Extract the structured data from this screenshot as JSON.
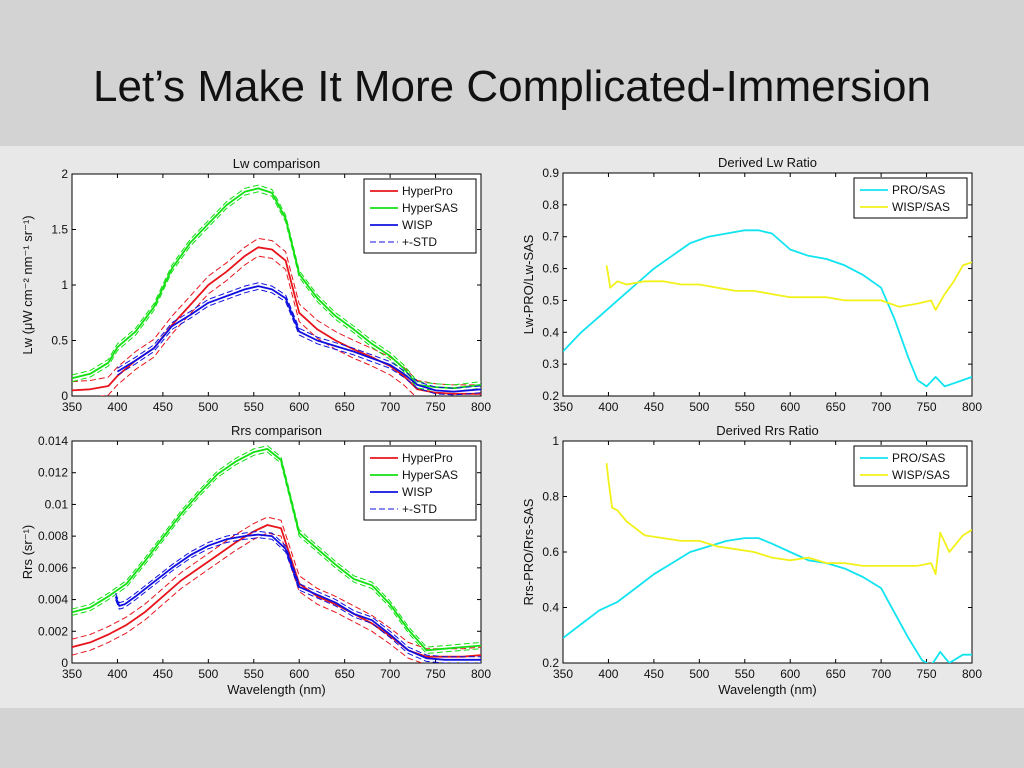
{
  "slide": {
    "title": "Let’s Make It More Complicated-Immersion"
  },
  "colors": {
    "hyperpro": "#e8141b",
    "hypersas": "#12e012",
    "wisp": "#1010e0",
    "pro_sas": "#10e4f0",
    "wisp_sas": "#f2f21a"
  },
  "chart_data": [
    {
      "id": "lw",
      "type": "line",
      "title": "Lw comparison",
      "xlabel": "",
      "ylabel": "Lw (μW cm⁻² nm⁻¹ sr⁻¹)",
      "xlim": [
        350,
        800
      ],
      "ylim": [
        0,
        2
      ],
      "xticks": [
        350,
        400,
        450,
        500,
        550,
        600,
        650,
        700,
        750,
        800
      ],
      "yticks": [
        0,
        0.5,
        1,
        1.5,
        2
      ],
      "ytick_labels": [
        "0",
        "0.5",
        "1",
        "1.5",
        "2"
      ],
      "legend_position": "top-right",
      "legend": [
        {
          "label": "HyperPro",
          "color_key": "hyperpro",
          "dashed": false
        },
        {
          "label": "HyperSAS",
          "color_key": "hypersas",
          "dashed": false
        },
        {
          "label": "WISP",
          "color_key": "wisp",
          "dashed": false
        },
        {
          "label": "+-STD",
          "color_key": "wisp",
          "dashed": true
        }
      ],
      "series": [
        {
          "name": "HyperPro",
          "color_key": "hyperpro",
          "std": 0.08,
          "x": [
            350,
            370,
            390,
            400,
            420,
            440,
            460,
            480,
            500,
            520,
            540,
            555,
            570,
            585,
            600,
            620,
            640,
            660,
            680,
            700,
            715,
            730,
            750,
            770,
            800
          ],
          "y": [
            0.05,
            0.06,
            0.09,
            0.18,
            0.32,
            0.43,
            0.64,
            0.82,
            1.0,
            1.12,
            1.26,
            1.34,
            1.32,
            1.22,
            0.75,
            0.6,
            0.5,
            0.42,
            0.35,
            0.27,
            0.18,
            0.06,
            0.03,
            0.02,
            0.02
          ]
        },
        {
          "name": "HyperSAS",
          "color_key": "hypersas",
          "std": 0.03,
          "x": [
            350,
            370,
            390,
            400,
            420,
            440,
            460,
            480,
            500,
            520,
            540,
            555,
            570,
            585,
            600,
            620,
            640,
            660,
            680,
            700,
            715,
            730,
            750,
            770,
            800
          ],
          "y": [
            0.16,
            0.2,
            0.3,
            0.44,
            0.58,
            0.8,
            1.15,
            1.38,
            1.55,
            1.72,
            1.84,
            1.87,
            1.83,
            1.6,
            1.1,
            0.88,
            0.72,
            0.6,
            0.47,
            0.36,
            0.25,
            0.1,
            0.08,
            0.07,
            0.1
          ]
        },
        {
          "name": "WISP",
          "color_key": "wisp",
          "std": 0.03,
          "x": [
            400,
            420,
            440,
            460,
            480,
            500,
            520,
            540,
            555,
            570,
            585,
            600,
            620,
            640,
            660,
            680,
            700,
            715,
            730,
            750,
            770,
            800
          ],
          "y": [
            0.22,
            0.32,
            0.43,
            0.63,
            0.73,
            0.84,
            0.9,
            0.96,
            0.99,
            0.96,
            0.88,
            0.58,
            0.5,
            0.45,
            0.4,
            0.34,
            0.28,
            0.2,
            0.1,
            0.05,
            0.04,
            0.06
          ]
        }
      ]
    },
    {
      "id": "lw_ratio",
      "type": "line",
      "title": "Derived Lw Ratio",
      "xlabel": "",
      "ylabel": "Lw-PRO/Lw-SAS",
      "xlim": [
        350,
        800
      ],
      "ylim": [
        0.2,
        0.9
      ],
      "xticks": [
        350,
        400,
        450,
        500,
        550,
        600,
        650,
        700,
        750,
        800
      ],
      "yticks": [
        0.2,
        0.3,
        0.4,
        0.5,
        0.6,
        0.7,
        0.8,
        0.9
      ],
      "ytick_labels": [
        "0.2",
        "0.3",
        "0.4",
        "0.5",
        "0.6",
        "0.7",
        "0.8",
        "0.9"
      ],
      "legend_position": "top-right",
      "legend": [
        {
          "label": "PRO/SAS",
          "color_key": "pro_sas",
          "dashed": false
        },
        {
          "label": "WISP/SAS",
          "color_key": "wisp_sas",
          "dashed": false
        }
      ],
      "series": [
        {
          "name": "PRO/SAS",
          "color_key": "pro_sas",
          "std": 0,
          "x": [
            350,
            370,
            390,
            410,
            430,
            450,
            470,
            490,
            510,
            530,
            550,
            565,
            580,
            600,
            620,
            640,
            660,
            680,
            700,
            715,
            730,
            740,
            750,
            760,
            770,
            780,
            800
          ],
          "y": [
            0.34,
            0.4,
            0.45,
            0.5,
            0.55,
            0.6,
            0.64,
            0.68,
            0.7,
            0.71,
            0.72,
            0.72,
            0.71,
            0.66,
            0.64,
            0.63,
            0.61,
            0.58,
            0.54,
            0.44,
            0.32,
            0.25,
            0.23,
            0.26,
            0.23,
            0.24,
            0.26
          ]
        },
        {
          "name": "WISP/SAS",
          "color_key": "wisp_sas",
          "std": 0,
          "x": [
            398,
            402,
            410,
            420,
            440,
            460,
            480,
            500,
            520,
            540,
            560,
            580,
            600,
            620,
            640,
            660,
            680,
            700,
            720,
            740,
            755,
            760,
            770,
            780,
            790,
            800
          ],
          "y": [
            0.61,
            0.54,
            0.56,
            0.55,
            0.56,
            0.56,
            0.55,
            0.55,
            0.54,
            0.53,
            0.53,
            0.52,
            0.51,
            0.51,
            0.51,
            0.5,
            0.5,
            0.5,
            0.48,
            0.49,
            0.5,
            0.47,
            0.52,
            0.56,
            0.61,
            0.62
          ]
        }
      ]
    },
    {
      "id": "rrs",
      "type": "line",
      "title": "Rrs comparison",
      "xlabel": "Wavelength (nm)",
      "ylabel": "Rrs (sr⁻¹)",
      "xlim": [
        350,
        800
      ],
      "ylim": [
        0,
        0.014
      ],
      "xticks": [
        350,
        400,
        450,
        500,
        550,
        600,
        650,
        700,
        750,
        800
      ],
      "yticks": [
        0,
        0.002,
        0.004,
        0.006,
        0.008,
        0.01,
        0.012,
        0.014
      ],
      "ytick_labels": [
        "0",
        "0.002",
        "0.004",
        "0.006",
        "0.008",
        "0.01",
        "0.012",
        "0.014"
      ],
      "legend_position": "top-right",
      "legend": [
        {
          "label": "HyperPro",
          "color_key": "hyperpro",
          "dashed": false
        },
        {
          "label": "HyperSAS",
          "color_key": "hypersas",
          "dashed": false
        },
        {
          "label": "WISP",
          "color_key": "wisp",
          "dashed": false
        },
        {
          "label": "+-STD",
          "color_key": "wisp",
          "dashed": true
        }
      ],
      "series": [
        {
          "name": "HyperPro",
          "color_key": "hyperpro",
          "std": 0.0005,
          "x": [
            350,
            370,
            390,
            410,
            430,
            450,
            470,
            490,
            510,
            530,
            550,
            565,
            580,
            600,
            620,
            640,
            660,
            680,
            700,
            720,
            740,
            760,
            780,
            800
          ],
          "y": [
            0.001,
            0.0013,
            0.0018,
            0.0024,
            0.0032,
            0.0042,
            0.0052,
            0.006,
            0.0068,
            0.0076,
            0.0083,
            0.0087,
            0.0085,
            0.005,
            0.0042,
            0.0037,
            0.0031,
            0.0025,
            0.0017,
            0.0008,
            0.0004,
            0.0004,
            0.0004,
            0.0005
          ]
        },
        {
          "name": "HyperSAS",
          "color_key": "hypersas",
          "std": 0.0002,
          "x": [
            350,
            370,
            390,
            410,
            430,
            450,
            470,
            490,
            510,
            530,
            550,
            565,
            580,
            600,
            620,
            640,
            660,
            680,
            700,
            720,
            740,
            760,
            780,
            800
          ],
          "y": [
            0.0032,
            0.0035,
            0.0042,
            0.005,
            0.0064,
            0.0079,
            0.0094,
            0.0107,
            0.0119,
            0.0127,
            0.0133,
            0.0135,
            0.0128,
            0.0082,
            0.0072,
            0.0062,
            0.0053,
            0.0049,
            0.0037,
            0.0021,
            0.0008,
            0.0009,
            0.001,
            0.0011
          ]
        },
        {
          "name": "WISP",
          "color_key": "wisp",
          "std": 0.0002,
          "x": [
            398,
            402,
            408,
            420,
            440,
            460,
            480,
            500,
            520,
            540,
            555,
            570,
            585,
            600,
            620,
            640,
            660,
            680,
            700,
            720,
            740,
            760,
            780,
            800
          ],
          "y": [
            0.0042,
            0.0036,
            0.0037,
            0.0042,
            0.0051,
            0.006,
            0.0068,
            0.0074,
            0.0078,
            0.008,
            0.0081,
            0.008,
            0.0072,
            0.0048,
            0.0043,
            0.0038,
            0.0031,
            0.0027,
            0.0018,
            0.0008,
            0.0003,
            0.0002,
            0.0002,
            0.0002
          ]
        }
      ]
    },
    {
      "id": "rrs_ratio",
      "type": "line",
      "title": "Derived Rrs Ratio",
      "xlabel": "Wavelength (nm)",
      "ylabel": "Rrs-PRO/Rrs-SAS",
      "xlim": [
        350,
        800
      ],
      "ylim": [
        0.2,
        1
      ],
      "xticks": [
        350,
        400,
        450,
        500,
        550,
        600,
        650,
        700,
        750,
        800
      ],
      "yticks": [
        0.2,
        0.4,
        0.6,
        0.8,
        1
      ],
      "ytick_labels": [
        "0.2",
        "0.4",
        "0.6",
        "0.8",
        "1"
      ],
      "legend_position": "top-right",
      "legend": [
        {
          "label": "PRO/SAS",
          "color_key": "pro_sas",
          "dashed": false
        },
        {
          "label": "WISP/SAS",
          "color_key": "wisp_sas",
          "dashed": false
        }
      ],
      "series": [
        {
          "name": "PRO/SAS",
          "color_key": "pro_sas",
          "std": 0,
          "x": [
            350,
            370,
            390,
            410,
            430,
            450,
            470,
            490,
            510,
            530,
            550,
            565,
            580,
            600,
            620,
            640,
            660,
            680,
            700,
            715,
            730,
            745,
            755,
            765,
            775,
            790,
            800
          ],
          "y": [
            0.29,
            0.34,
            0.39,
            0.42,
            0.47,
            0.52,
            0.56,
            0.6,
            0.62,
            0.64,
            0.65,
            0.65,
            0.63,
            0.6,
            0.57,
            0.56,
            0.54,
            0.51,
            0.47,
            0.38,
            0.29,
            0.21,
            0.19,
            0.24,
            0.2,
            0.23,
            0.23
          ]
        },
        {
          "name": "WISP/SAS",
          "color_key": "wisp_sas",
          "std": 0,
          "x": [
            398,
            400,
            404,
            410,
            420,
            440,
            460,
            480,
            500,
            520,
            540,
            560,
            580,
            600,
            620,
            640,
            660,
            680,
            700,
            720,
            740,
            755,
            760,
            765,
            775,
            790,
            800
          ],
          "y": [
            0.92,
            0.86,
            0.76,
            0.75,
            0.71,
            0.66,
            0.65,
            0.64,
            0.64,
            0.62,
            0.61,
            0.6,
            0.58,
            0.57,
            0.58,
            0.56,
            0.56,
            0.55,
            0.55,
            0.55,
            0.55,
            0.56,
            0.52,
            0.67,
            0.6,
            0.66,
            0.68
          ]
        }
      ]
    }
  ]
}
